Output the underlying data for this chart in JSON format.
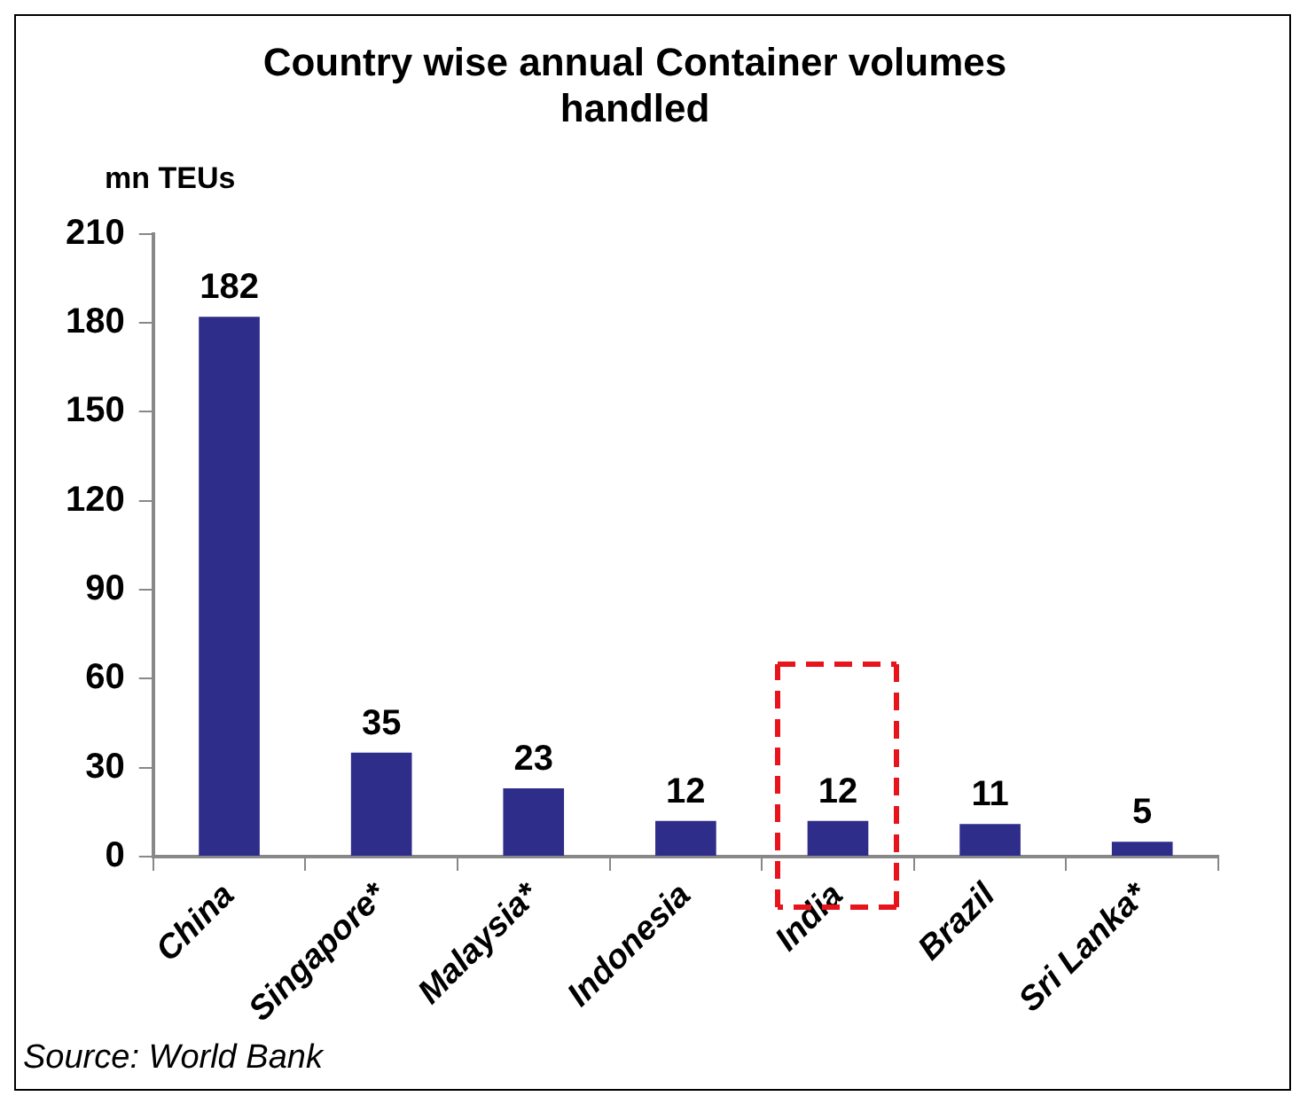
{
  "chart_data": {
    "type": "bar",
    "title": [
      "Country wise annual Container volumes",
      "handled"
    ],
    "ylabel": "mn TEUs",
    "categories": [
      "China",
      "Singapore*",
      "Malaysia*",
      "Indonesia",
      "India",
      "Brazil",
      "Sri Lanka*"
    ],
    "values": [
      182,
      35,
      23,
      12,
      12,
      11,
      5
    ],
    "color": "#2e2d8a",
    "ylim": [
      0,
      210
    ],
    "yticks": [
      0,
      30,
      60,
      90,
      120,
      150,
      180,
      210
    ],
    "data_labels": true,
    "grid": false,
    "legend": false,
    "annotations": [
      "Source: World Bank"
    ]
  }
}
